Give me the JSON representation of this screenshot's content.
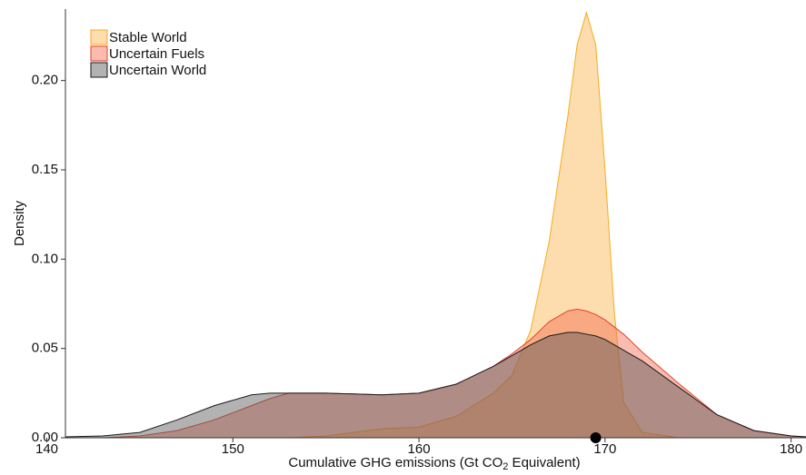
{
  "chart_data": {
    "type": "density",
    "x_label": {
      "text": "Cumulative GHG emissions (Gt CO",
      "sub": "2",
      "tail": " Equivalent)"
    },
    "y_label": "Density",
    "x": [
      141,
      143,
      145,
      147,
      149,
      151,
      152,
      153,
      155,
      158,
      160,
      162,
      164,
      165,
      166,
      167,
      168,
      168.5,
      169,
      169.5,
      170,
      170.5,
      171,
      172,
      174,
      176,
      178,
      180,
      180.8
    ],
    "series": [
      {
        "name": "Stable World",
        "color": "#fbb44a",
        "stroke": "#f5ac1e",
        "values": [
          0,
          0,
          0,
          0,
          0,
          0,
          0,
          0,
          0.001,
          0.005,
          0.006,
          0.012,
          0.025,
          0.035,
          0.06,
          0.11,
          0.18,
          0.22,
          0.238,
          0.22,
          0.15,
          0.07,
          0.02,
          0.003,
          0,
          0,
          0,
          0,
          0
        ]
      },
      {
        "name": "Uncertain Fuels",
        "color": "#f56a4e",
        "stroke": "#e2452f",
        "values": [
          0,
          0,
          0.001,
          0.004,
          0.01,
          0.018,
          0.022,
          0.025,
          0.025,
          0.024,
          0.025,
          0.03,
          0.04,
          0.047,
          0.055,
          0.065,
          0.071,
          0.072,
          0.071,
          0.069,
          0.066,
          0.062,
          0.058,
          0.048,
          0.03,
          0.013,
          0.004,
          0.001,
          0.0005
        ]
      },
      {
        "name": "Uncertain World",
        "color": "#555555",
        "stroke": "#1a1a1a",
        "values": [
          0.0005,
          0.001,
          0.003,
          0.01,
          0.018,
          0.024,
          0.025,
          0.025,
          0.025,
          0.024,
          0.025,
          0.03,
          0.04,
          0.046,
          0.052,
          0.057,
          0.059,
          0.059,
          0.058,
          0.057,
          0.055,
          0.052,
          0.049,
          0.043,
          0.028,
          0.013,
          0.004,
          0.001,
          0.0005
        ]
      }
    ],
    "opacity": 0.45,
    "marker": {
      "x": 169.5,
      "y": 0
    },
    "xlim": [
      141,
      180.8
    ],
    "xticks": [
      140,
      150,
      160,
      170,
      180
    ],
    "ylim": [
      0,
      0.24
    ],
    "yticks": [
      {
        "value": 0,
        "label": "0.00"
      },
      {
        "value": 0.05,
        "label": "0.05"
      },
      {
        "value": 0.1,
        "label": "0.10"
      },
      {
        "value": 0.15,
        "label": "0.15"
      },
      {
        "value": 0.2,
        "label": "0.20"
      }
    ],
    "legend": "top-left"
  }
}
